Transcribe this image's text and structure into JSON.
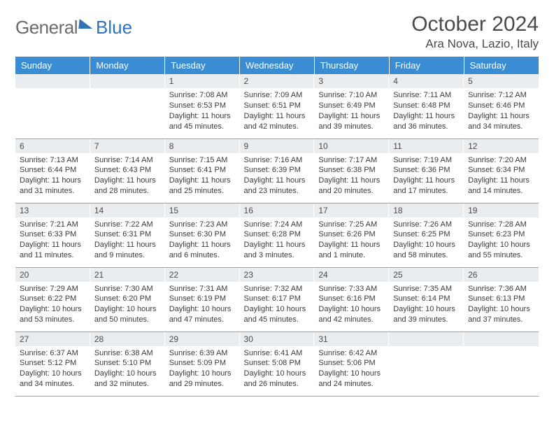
{
  "logo": {
    "part1": "General",
    "part2": "Blue"
  },
  "title": "October 2024",
  "location": "Ara Nova, Lazio, Italy",
  "header_bg": "#3b8dd3",
  "daynum_bg": "#e9edf0",
  "border_color": "#a0a0a0",
  "text_color": "#3a3a3a",
  "days": [
    "Sunday",
    "Monday",
    "Tuesday",
    "Wednesday",
    "Thursday",
    "Friday",
    "Saturday"
  ],
  "weeks": [
    [
      null,
      null,
      {
        "n": "1",
        "sr": "Sunrise: 7:08 AM",
        "ss": "Sunset: 6:53 PM",
        "dl": "Daylight: 11 hours and 45 minutes."
      },
      {
        "n": "2",
        "sr": "Sunrise: 7:09 AM",
        "ss": "Sunset: 6:51 PM",
        "dl": "Daylight: 11 hours and 42 minutes."
      },
      {
        "n": "3",
        "sr": "Sunrise: 7:10 AM",
        "ss": "Sunset: 6:49 PM",
        "dl": "Daylight: 11 hours and 39 minutes."
      },
      {
        "n": "4",
        "sr": "Sunrise: 7:11 AM",
        "ss": "Sunset: 6:48 PM",
        "dl": "Daylight: 11 hours and 36 minutes."
      },
      {
        "n": "5",
        "sr": "Sunrise: 7:12 AM",
        "ss": "Sunset: 6:46 PM",
        "dl": "Daylight: 11 hours and 34 minutes."
      }
    ],
    [
      {
        "n": "6",
        "sr": "Sunrise: 7:13 AM",
        "ss": "Sunset: 6:44 PM",
        "dl": "Daylight: 11 hours and 31 minutes."
      },
      {
        "n": "7",
        "sr": "Sunrise: 7:14 AM",
        "ss": "Sunset: 6:43 PM",
        "dl": "Daylight: 11 hours and 28 minutes."
      },
      {
        "n": "8",
        "sr": "Sunrise: 7:15 AM",
        "ss": "Sunset: 6:41 PM",
        "dl": "Daylight: 11 hours and 25 minutes."
      },
      {
        "n": "9",
        "sr": "Sunrise: 7:16 AM",
        "ss": "Sunset: 6:39 PM",
        "dl": "Daylight: 11 hours and 23 minutes."
      },
      {
        "n": "10",
        "sr": "Sunrise: 7:17 AM",
        "ss": "Sunset: 6:38 PM",
        "dl": "Daylight: 11 hours and 20 minutes."
      },
      {
        "n": "11",
        "sr": "Sunrise: 7:19 AM",
        "ss": "Sunset: 6:36 PM",
        "dl": "Daylight: 11 hours and 17 minutes."
      },
      {
        "n": "12",
        "sr": "Sunrise: 7:20 AM",
        "ss": "Sunset: 6:34 PM",
        "dl": "Daylight: 11 hours and 14 minutes."
      }
    ],
    [
      {
        "n": "13",
        "sr": "Sunrise: 7:21 AM",
        "ss": "Sunset: 6:33 PM",
        "dl": "Daylight: 11 hours and 11 minutes."
      },
      {
        "n": "14",
        "sr": "Sunrise: 7:22 AM",
        "ss": "Sunset: 6:31 PM",
        "dl": "Daylight: 11 hours and 9 minutes."
      },
      {
        "n": "15",
        "sr": "Sunrise: 7:23 AM",
        "ss": "Sunset: 6:30 PM",
        "dl": "Daylight: 11 hours and 6 minutes."
      },
      {
        "n": "16",
        "sr": "Sunrise: 7:24 AM",
        "ss": "Sunset: 6:28 PM",
        "dl": "Daylight: 11 hours and 3 minutes."
      },
      {
        "n": "17",
        "sr": "Sunrise: 7:25 AM",
        "ss": "Sunset: 6:26 PM",
        "dl": "Daylight: 11 hours and 1 minute."
      },
      {
        "n": "18",
        "sr": "Sunrise: 7:26 AM",
        "ss": "Sunset: 6:25 PM",
        "dl": "Daylight: 10 hours and 58 minutes."
      },
      {
        "n": "19",
        "sr": "Sunrise: 7:28 AM",
        "ss": "Sunset: 6:23 PM",
        "dl": "Daylight: 10 hours and 55 minutes."
      }
    ],
    [
      {
        "n": "20",
        "sr": "Sunrise: 7:29 AM",
        "ss": "Sunset: 6:22 PM",
        "dl": "Daylight: 10 hours and 53 minutes."
      },
      {
        "n": "21",
        "sr": "Sunrise: 7:30 AM",
        "ss": "Sunset: 6:20 PM",
        "dl": "Daylight: 10 hours and 50 minutes."
      },
      {
        "n": "22",
        "sr": "Sunrise: 7:31 AM",
        "ss": "Sunset: 6:19 PM",
        "dl": "Daylight: 10 hours and 47 minutes."
      },
      {
        "n": "23",
        "sr": "Sunrise: 7:32 AM",
        "ss": "Sunset: 6:17 PM",
        "dl": "Daylight: 10 hours and 45 minutes."
      },
      {
        "n": "24",
        "sr": "Sunrise: 7:33 AM",
        "ss": "Sunset: 6:16 PM",
        "dl": "Daylight: 10 hours and 42 minutes."
      },
      {
        "n": "25",
        "sr": "Sunrise: 7:35 AM",
        "ss": "Sunset: 6:14 PM",
        "dl": "Daylight: 10 hours and 39 minutes."
      },
      {
        "n": "26",
        "sr": "Sunrise: 7:36 AM",
        "ss": "Sunset: 6:13 PM",
        "dl": "Daylight: 10 hours and 37 minutes."
      }
    ],
    [
      {
        "n": "27",
        "sr": "Sunrise: 6:37 AM",
        "ss": "Sunset: 5:12 PM",
        "dl": "Daylight: 10 hours and 34 minutes."
      },
      {
        "n": "28",
        "sr": "Sunrise: 6:38 AM",
        "ss": "Sunset: 5:10 PM",
        "dl": "Daylight: 10 hours and 32 minutes."
      },
      {
        "n": "29",
        "sr": "Sunrise: 6:39 AM",
        "ss": "Sunset: 5:09 PM",
        "dl": "Daylight: 10 hours and 29 minutes."
      },
      {
        "n": "30",
        "sr": "Sunrise: 6:41 AM",
        "ss": "Sunset: 5:08 PM",
        "dl": "Daylight: 10 hours and 26 minutes."
      },
      {
        "n": "31",
        "sr": "Sunrise: 6:42 AM",
        "ss": "Sunset: 5:06 PM",
        "dl": "Daylight: 10 hours and 24 minutes."
      },
      null,
      null
    ]
  ]
}
